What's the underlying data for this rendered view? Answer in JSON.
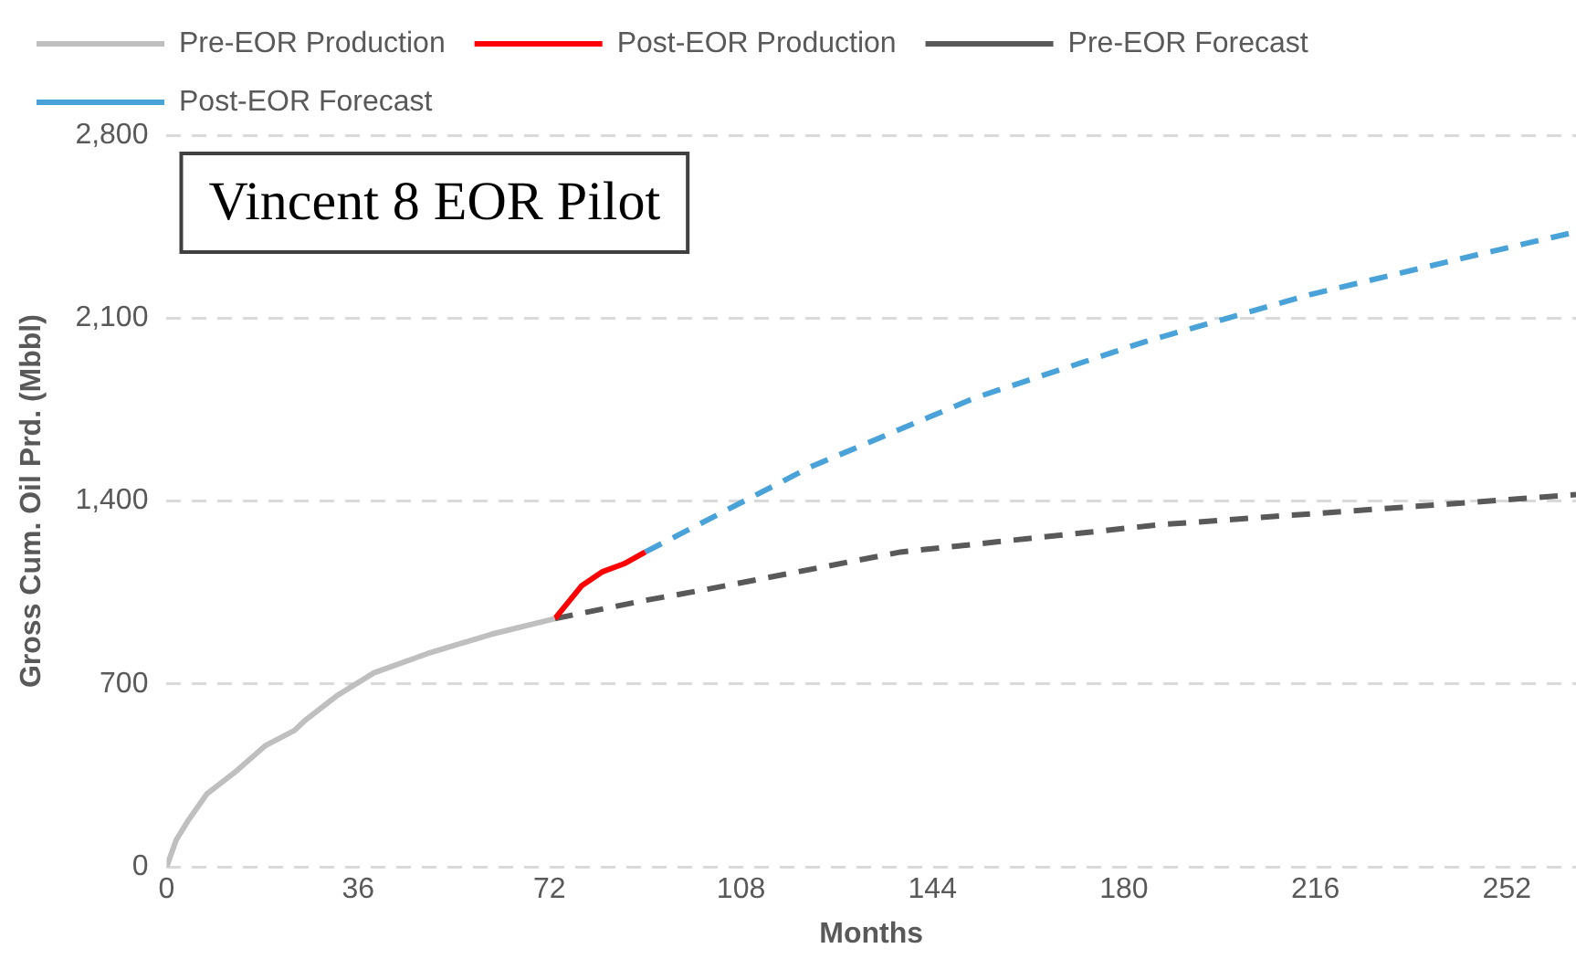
{
  "chart_data": {
    "type": "line",
    "title": "Vincent 8 EOR Pilot",
    "xlabel": "Months",
    "ylabel": "Gross Cum. Oil Prd. (Mbbl)",
    "xlim": [
      0,
      265
    ],
    "xticks": [
      0,
      36,
      72,
      108,
      144,
      180,
      216,
      252
    ],
    "ylim": [
      0,
      2800
    ],
    "yticks": [
      {
        "value": 0,
        "label": "0"
      },
      {
        "value": 700,
        "label": "700"
      },
      {
        "value": 1400,
        "label": "1,400"
      },
      {
        "value": 2100,
        "label": "2,100"
      },
      {
        "value": 2800,
        "label": "2,800"
      }
    ],
    "grid": "y",
    "legend": "top",
    "marker": "none",
    "series": [
      {
        "name": "Pre-EOR Production",
        "color": "#bfbfbf",
        "line_style": "solid",
        "x": [
          0,
          1.8,
          4,
          7.6,
          12.7,
          18.5,
          24,
          26,
          32,
          39,
          49,
          61,
          73
        ],
        "values": [
          0,
          103,
          176,
          280,
          360,
          463,
          522,
          560,
          655,
          743,
          816,
          890,
          950
        ]
      },
      {
        "name": "Post-EOR Production",
        "color": "#ff0000",
        "line_style": "solid",
        "x": [
          73,
          78,
          82,
          86,
          90
        ],
        "values": [
          950,
          1075,
          1130,
          1160,
          1205
        ]
      },
      {
        "name": "Pre-EOR Forecast",
        "color": "#595959",
        "line_style": "dashed",
        "x": [
          73,
          90,
          101,
          138,
          187,
          235,
          265
        ],
        "values": [
          950,
          1020,
          1060,
          1205,
          1310,
          1380,
          1425
        ]
      },
      {
        "name": "Post-EOR Forecast",
        "color": "#4aa3d8",
        "line_style": "dashed",
        "x": [
          90,
          121,
          152,
          184,
          215,
          247,
          265
        ],
        "values": [
          1205,
          1530,
          1795,
          2010,
          2190,
          2345,
          2430
        ]
      }
    ]
  }
}
